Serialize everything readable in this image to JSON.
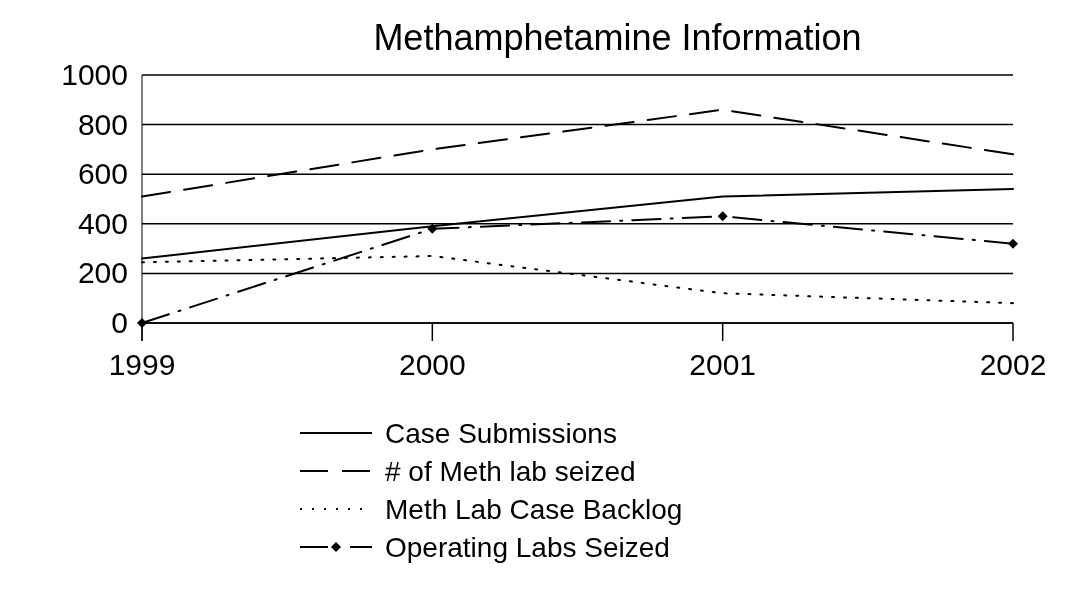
{
  "chart_data": {
    "type": "line",
    "title": "Methamphetamine Information",
    "x": [
      1999,
      2000,
      2001,
      2002
    ],
    "xlim": [
      1999,
      2002
    ],
    "xticks": [
      1999,
      2000,
      2001,
      2002
    ],
    "ylim": [
      0,
      1000
    ],
    "yticks": [
      0,
      200,
      400,
      600,
      800,
      1000
    ],
    "grid": "y",
    "legend": "bottom",
    "series": [
      {
        "name": "Case Submissions",
        "color": "#000000",
        "values": [
          260,
          390,
          510,
          540
        ],
        "line_style": "solid",
        "marker": "none"
      },
      {
        "name": "# of Meth lab seized",
        "color": "#000000",
        "values": [
          510,
          700,
          860,
          680
        ],
        "line_style": "dashed",
        "marker": "none"
      },
      {
        "name": "Meth Lab Case Backlog",
        "color": "#000000",
        "values": [
          245,
          270,
          120,
          80
        ],
        "line_style": "dotted",
        "marker": "none"
      },
      {
        "name": "Operating Labs Seized",
        "color": "#000000",
        "values": [
          0,
          380,
          430,
          320
        ],
        "line_style": "dashdot",
        "marker": "diamond"
      }
    ]
  }
}
